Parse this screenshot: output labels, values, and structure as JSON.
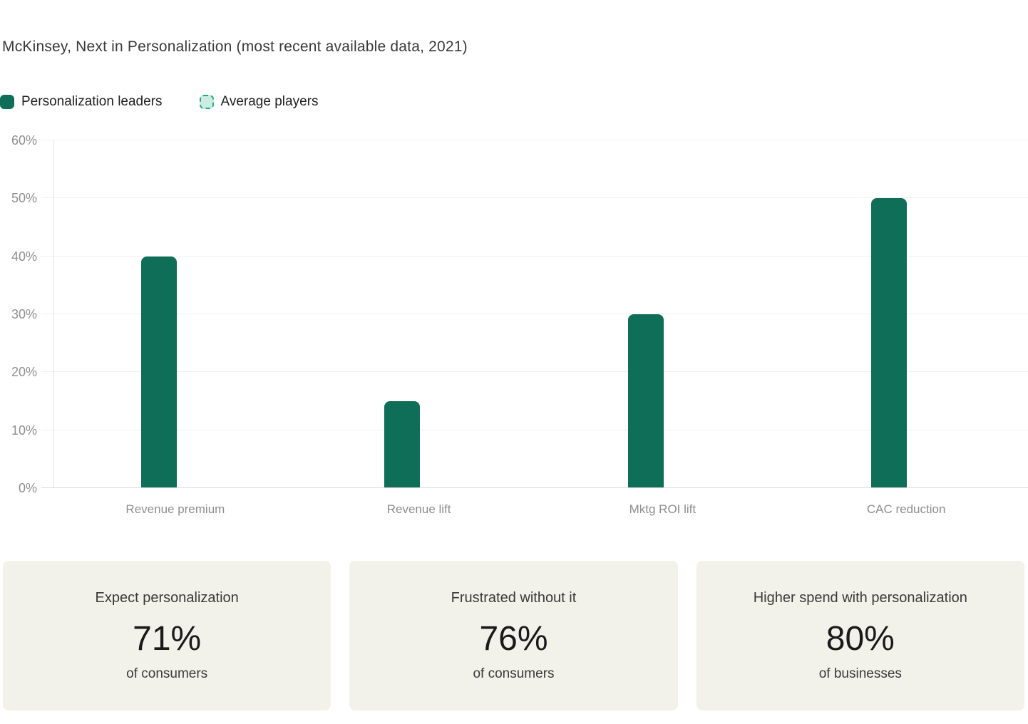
{
  "title": "McKinsey, Next in Personalization (most recent available data, 2021)",
  "legend": [
    {
      "label": "Personalization leaders",
      "swatch": "solid",
      "color": "#0f6e58"
    },
    {
      "label": "Average players",
      "swatch": "dashed",
      "fill": "#c9eddf",
      "border": "#2fa48d"
    }
  ],
  "chart_data": {
    "type": "bar",
    "categories": [
      "Revenue premium",
      "Revenue lift",
      "Mktg ROI lift",
      "CAC reduction"
    ],
    "series": [
      {
        "name": "Personalization leaders",
        "values": [
          40,
          15,
          30,
          50
        ],
        "color": "#0f6e58"
      },
      {
        "name": "Average players",
        "values": [
          0,
          0,
          0,
          0
        ],
        "fill": "#c9eddf",
        "border": "#2fa48d"
      }
    ],
    "title": "McKinsey, Next in Personalization (most recent available data, 2021)",
    "xlabel": "",
    "ylabel": "",
    "ylim": [
      0,
      60
    ],
    "yticks": [
      "0%",
      "10%",
      "20%",
      "30%",
      "40%",
      "50%",
      "60%"
    ],
    "grid": true,
    "legend_position": "top-left"
  },
  "cards": [
    {
      "title": "Expect personalization",
      "value": "71%",
      "subtitle": "of consumers"
    },
    {
      "title": "Frustrated without it",
      "value": "76%",
      "subtitle": "of consumers"
    },
    {
      "title": "Higher spend with personalization",
      "value": "80%",
      "subtitle": "of businesses"
    }
  ],
  "colors": {
    "leader_green": "#0f6e58",
    "average_fill": "#c9eddf",
    "average_border": "#2fa48d",
    "card_background": "#f2f1ea",
    "gridline": "#f0f0f0",
    "axis_line": "#dcdcdc",
    "axis_text": "#8f8f8f"
  }
}
